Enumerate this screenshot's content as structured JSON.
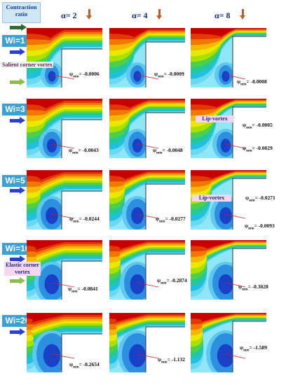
{
  "header": {
    "title": "Contraction ratio",
    "columns": [
      {
        "label": "α= 2"
      },
      {
        "label": "α= 4"
      },
      {
        "label": "α= 8"
      }
    ]
  },
  "rows": [
    {
      "label": "Wi=1",
      "values": [
        "ψ min = -0.0006",
        "ψ min = -0.0009",
        "ψ min = -0.0008"
      ]
    },
    {
      "label": "Wi=3",
      "values": [
        "ψ min = -0.0043",
        "ψ min = -0.0048",
        "ψ min = -0.0029"
      ],
      "extra": "ψ min = -0.0005"
    },
    {
      "label": "Wi=5",
      "values": [
        "ψ min = -0.0244",
        "ψ min = -0.0277",
        "ψ min = -0.0093"
      ],
      "extra": "ψ min = -0.0271"
    },
    {
      "label": "Wi=10",
      "values": [
        "ψ min = -0.0841",
        "ψ min = -0.2874",
        "ψ min = -0.3028"
      ]
    },
    {
      "label": "Wi=20",
      "values": [
        "ψ min = -0.2654",
        "ψ min = -1.132",
        "ψ min = -1.589"
      ]
    }
  ],
  "annotations": {
    "salient": "Salient corner vortex",
    "lip_row2": "Lip-vortex",
    "lip_row3": "Lip-vortex",
    "elastic": "Elastic corner vortex"
  },
  "colors": {
    "label_bg": "#3ba0d3",
    "title_bg": "#cfe6f5",
    "arrow_blue": "#2a3fcf",
    "arrow_green": "#8bbf49",
    "down_arrow": "#b8602a",
    "leader": "#cc2222"
  }
}
